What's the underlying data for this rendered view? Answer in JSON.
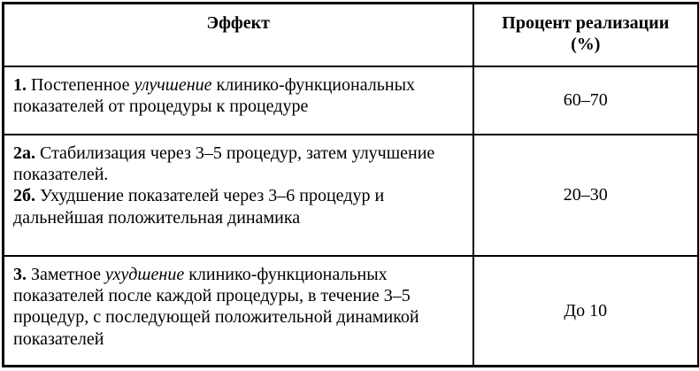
{
  "page": {
    "background": "#ffffff",
    "border_color": "#000000",
    "text_color": "#000000"
  },
  "table": {
    "header": {
      "effect_label": "Эффект",
      "percent_label_line1": "Процент реализации",
      "percent_label_line2": "(%)"
    },
    "rows": [
      {
        "paragraphs": [
          {
            "segments": [
              {
                "style": "bold",
                "text": "1."
              },
              {
                "style": "normal",
                "text": " Постепенное "
              },
              {
                "style": "italic",
                "text": "улучшение"
              },
              {
                "style": "normal",
                "text": " клинико-функциональных показателей от процедуры к процедуре"
              }
            ]
          }
        ],
        "percent": "60–70"
      },
      {
        "paragraphs": [
          {
            "segments": [
              {
                "style": "bold",
                "text": "2а."
              },
              {
                "style": "normal",
                "text": " Стабилизация через 3–5 процедур, затем улучшение показателей."
              }
            ]
          },
          {
            "segments": [
              {
                "style": "bold",
                "text": "2б."
              },
              {
                "style": "normal",
                "text": " Ухудшение показателей через 3–6 процедур и дальнейшая положительная динамика"
              }
            ]
          }
        ],
        "percent": "20–30"
      },
      {
        "paragraphs": [
          {
            "segments": [
              {
                "style": "bold",
                "text": "3."
              },
              {
                "style": "normal",
                "text": " Заметное "
              },
              {
                "style": "italic",
                "text": "ухудшение"
              },
              {
                "style": "normal",
                "text": " клинико-функциональных показателей после каждой процедуры, в течение 3–5 процедур, с последующей положительной динамикой показателей"
              }
            ]
          }
        ],
        "percent": "До 10"
      }
    ]
  }
}
